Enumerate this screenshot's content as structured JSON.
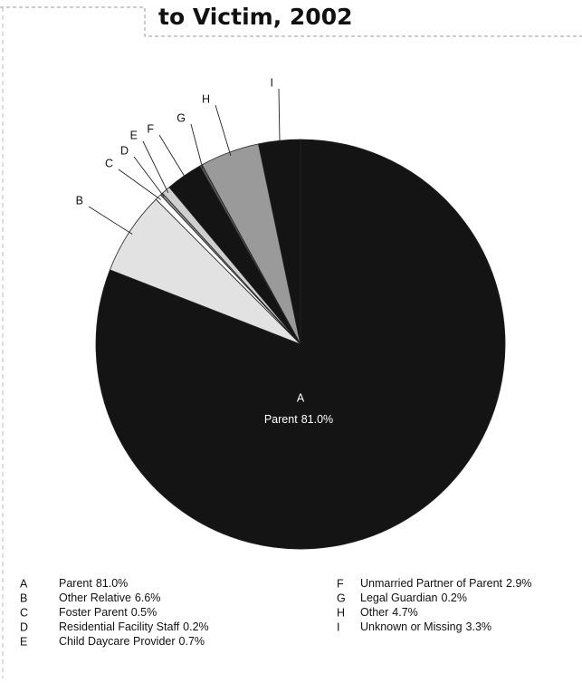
{
  "chart_data": {
    "type": "pie",
    "title": "to Victim, 2002",
    "keys": [
      "A",
      "B",
      "C",
      "D",
      "E",
      "F",
      "G",
      "H",
      "I"
    ],
    "categories": [
      "Parent",
      "Other Relative",
      "Foster Parent",
      "Residential Facility Staff",
      "Child Daycare Provider",
      "Unmarried Partner of Parent",
      "Legal Guardian",
      "Other",
      "Unknown or Missing"
    ],
    "values": [
      81.0,
      6.6,
      0.5,
      0.2,
      0.7,
      2.9,
      0.2,
      4.7,
      3.3
    ],
    "value_labels": [
      "81.0%",
      "6.6%",
      "0.5%",
      "0.2%",
      "0.7%",
      "2.9%",
      "0.2%",
      "4.7%",
      "3.3%"
    ],
    "colors": [
      "#141414",
      "#e2e2e2",
      "#ffffff",
      "#8a8a8a",
      "#cfcfcf",
      "#141414",
      "#5a5a5a",
      "#9a9a9a",
      "#141414"
    ]
  }
}
